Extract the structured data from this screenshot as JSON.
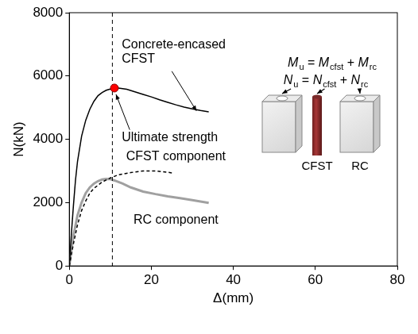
{
  "chart_data": {
    "type": "line",
    "xlabel": "Δ(mm)",
    "ylabel": "N(kN)",
    "xlim": [
      0,
      80
    ],
    "xticks": [
      0,
      20,
      40,
      60,
      80
    ],
    "ylim": [
      0,
      8000
    ],
    "yticks": [
      0,
      2000,
      4000,
      6000,
      8000
    ],
    "grid": false,
    "series": [
      {
        "name": "Concrete-encased CFST",
        "color": "#000000",
        "line_style": "solid",
        "x": [
          0,
          0.5,
          1,
          1.5,
          2,
          3,
          4,
          5,
          6,
          7,
          8,
          9,
          10,
          11,
          12,
          14,
          16,
          18,
          20,
          22,
          24,
          26,
          28,
          30,
          32,
          34
        ],
        "values": [
          0,
          1000,
          1900,
          2700,
          3300,
          4100,
          4600,
          4950,
          5200,
          5380,
          5480,
          5550,
          5590,
          5620,
          5620,
          5580,
          5500,
          5420,
          5340,
          5250,
          5170,
          5090,
          5020,
          4960,
          4910,
          4870
        ]
      },
      {
        "name": "CFST component",
        "color": "#000000",
        "line_style": "dashed",
        "x": [
          0,
          1,
          2,
          3,
          4,
          5,
          6,
          8,
          10,
          12,
          15,
          18,
          21,
          24,
          25
        ],
        "values": [
          0,
          700,
          1300,
          1750,
          2050,
          2300,
          2450,
          2650,
          2780,
          2880,
          2950,
          3000,
          3000,
          2960,
          2940
        ]
      },
      {
        "name": "RC component",
        "color": "#a0a0a0",
        "line_style": "solid",
        "x": [
          0,
          0.5,
          1,
          2,
          3,
          4,
          5,
          6,
          7,
          8,
          9,
          10,
          11,
          13,
          15,
          18,
          21,
          24,
          27,
          30,
          34
        ],
        "values": [
          0,
          500,
          950,
          1600,
          2000,
          2300,
          2480,
          2600,
          2680,
          2730,
          2750,
          2740,
          2700,
          2600,
          2480,
          2350,
          2270,
          2200,
          2140,
          2080,
          1990
        ]
      }
    ],
    "reference_lines": [
      {
        "x": 10.5
      }
    ],
    "points": [
      {
        "label": "Ultimate strength",
        "x": 11,
        "y": 5620,
        "color": "#ff0000"
      }
    ],
    "diagram": {
      "formulas": [
        [
          {
            "text": "M",
            "sub": "u"
          },
          {
            "text": " = "
          },
          {
            "text": "M",
            "sub": "cfst"
          },
          {
            "text": " + "
          },
          {
            "text": "M",
            "sub": "rc"
          }
        ],
        [
          {
            "text": "N",
            "sub": "u"
          },
          {
            "text": " = "
          },
          {
            "text": "N",
            "sub": "cfst"
          },
          {
            "text": " + "
          },
          {
            "text": "N",
            "sub": "rc"
          }
        ]
      ],
      "component_labels": [
        "CFST",
        "RC"
      ]
    }
  }
}
